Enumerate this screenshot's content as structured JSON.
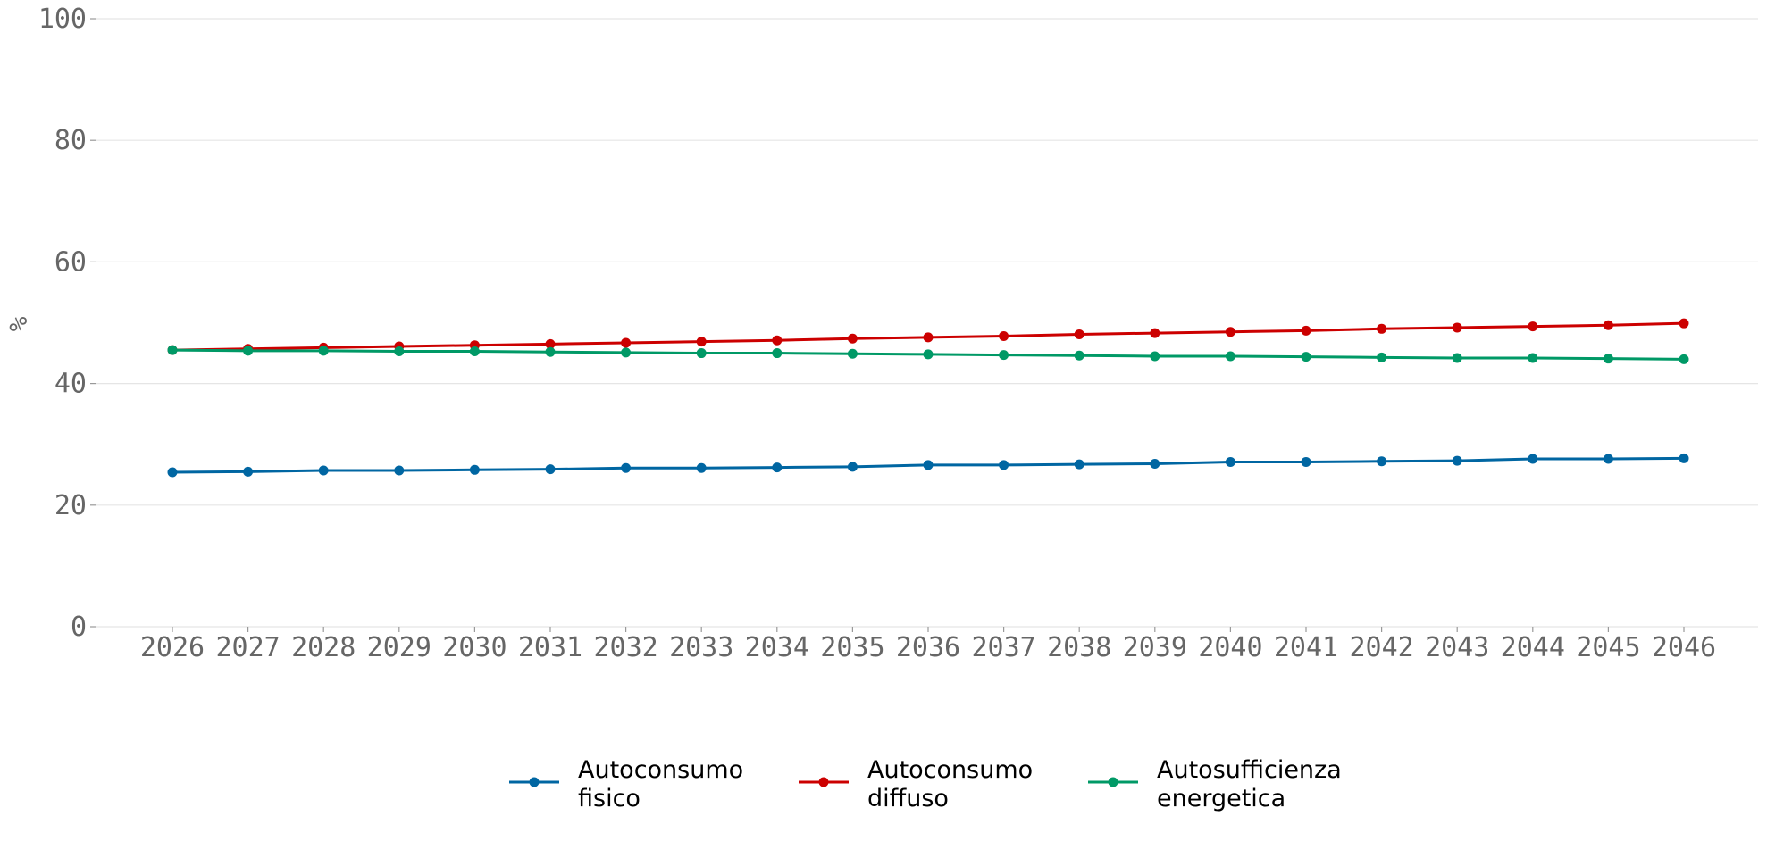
{
  "chart_data": {
    "type": "line",
    "title": "",
    "xlabel": "",
    "ylabel": "%",
    "ylim": [
      0,
      100
    ],
    "yticks": [
      "0",
      "20",
      "40",
      "60",
      "80",
      "100"
    ],
    "grid": "horizontal",
    "legend_position": "bottom-center",
    "x": [
      "2026",
      "2027",
      "2028",
      "2029",
      "2030",
      "2031",
      "2032",
      "2033",
      "2034",
      "2035",
      "2036",
      "2037",
      "2038",
      "2039",
      "2040",
      "2041",
      "2042",
      "2043",
      "2044",
      "2045",
      "2046"
    ],
    "series": [
      {
        "name_lines": [
          "Autoconsumo",
          "fisico"
        ],
        "color": "#0066a2",
        "values": [
          25.4,
          25.5,
          25.7,
          25.7,
          25.8,
          25.9,
          26.1,
          26.1,
          26.2,
          26.3,
          26.6,
          26.6,
          26.7,
          26.8,
          27.1,
          27.1,
          27.2,
          27.3,
          27.6,
          27.6,
          27.7
        ]
      },
      {
        "name_lines": [
          "Autoconsumo",
          "diffuso"
        ],
        "color": "#cc0000",
        "values": [
          45.5,
          45.7,
          45.9,
          46.1,
          46.3,
          46.5,
          46.7,
          46.9,
          47.1,
          47.4,
          47.6,
          47.8,
          48.1,
          48.3,
          48.5,
          48.7,
          49.0,
          49.2,
          49.4,
          49.6,
          49.9
        ]
      },
      {
        "name_lines": [
          "Autosufficienza",
          "energetica"
        ],
        "color": "#009966",
        "values": [
          45.5,
          45.4,
          45.4,
          45.3,
          45.3,
          45.2,
          45.1,
          45.0,
          45.0,
          44.9,
          44.8,
          44.7,
          44.6,
          44.5,
          44.5,
          44.4,
          44.3,
          44.2,
          44.2,
          44.1,
          44.0
        ]
      }
    ]
  }
}
